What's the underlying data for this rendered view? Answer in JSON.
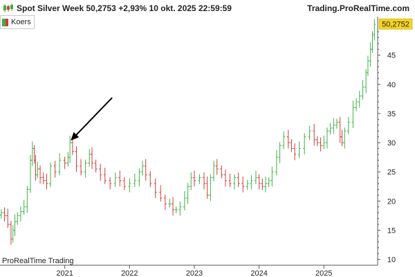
{
  "header": {
    "title": "Spot  Silver Week 50,2753 +2,93% 10 okt. 2025 22:59:59",
    "brand": "Trading.ProRealTime.com",
    "icon": "candlestick-chart-icon"
  },
  "legend": {
    "label": "Koers"
  },
  "watermark": "ProRealTime Trading",
  "price_tag": {
    "text": "50,2752",
    "color": "#f5d320"
  },
  "colors": {
    "up": "#3cb043",
    "down": "#d03a3a",
    "annotation": "#000000",
    "axis": "#555555"
  },
  "chart_data": {
    "type": "bar",
    "style": "ohlc-bars",
    "title": "Spot  Silver Week 50,2753 +2,93% 10 okt. 2025 22:59:59",
    "x_tick_labels": [
      "2021",
      "2022",
      "2023",
      "2024",
      "2025"
    ],
    "x_range": [
      2020.0,
      2025.83
    ],
    "y_tick_labels": [
      "10",
      "15",
      "20",
      "25",
      "30",
      "35",
      "40",
      "45"
    ],
    "ylim": [
      9,
      51.6
    ],
    "grid": false,
    "legend": "top-left",
    "series": [
      {
        "name": "Koers",
        "x": [
          2020.02,
          2020.07,
          2020.12,
          2020.17,
          2020.2,
          2020.23,
          2020.27,
          2020.32,
          2020.37,
          2020.42,
          2020.47,
          2020.5,
          2020.53,
          2020.55,
          2020.58,
          2020.62,
          2020.67,
          2020.72,
          2020.78,
          2020.85,
          2020.92,
          2021.0,
          2021.05,
          2021.08,
          2021.12,
          2021.18,
          2021.25,
          2021.32,
          2021.38,
          2021.42,
          2021.48,
          2021.55,
          2021.62,
          2021.7,
          2021.78,
          2021.85,
          2021.92,
          2022.0,
          2022.08,
          2022.15,
          2022.2,
          2022.25,
          2022.32,
          2022.4,
          2022.48,
          2022.55,
          2022.62,
          2022.67,
          2022.72,
          2022.78,
          2022.85,
          2022.9,
          2022.95,
          2023.0,
          2023.08,
          2023.15,
          2023.2,
          2023.25,
          2023.3,
          2023.35,
          2023.42,
          2023.48,
          2023.55,
          2023.62,
          2023.68,
          2023.75,
          2023.82,
          2023.88,
          2023.95,
          2024.0,
          2024.05,
          2024.1,
          2024.15,
          2024.2,
          2024.27,
          2024.32,
          2024.38,
          2024.45,
          2024.5,
          2024.55,
          2024.62,
          2024.7,
          2024.78,
          2024.85,
          2024.9,
          2024.95,
          2025.0,
          2025.05,
          2025.1,
          2025.15,
          2025.2,
          2025.25,
          2025.28,
          2025.32,
          2025.38,
          2025.45,
          2025.5,
          2025.55,
          2025.6,
          2025.65,
          2025.68,
          2025.72,
          2025.75,
          2025.78
        ],
        "close": [
          18.0,
          17.5,
          16.0,
          13.5,
          15.0,
          16.5,
          17.5,
          18.2,
          19.0,
          22.0,
          27.0,
          29.0,
          27.0,
          24.5,
          25.5,
          24.0,
          23.5,
          23.0,
          26.0,
          25.0,
          27.0,
          26.5,
          27.5,
          30.0,
          28.5,
          26.0,
          25.0,
          26.5,
          28.0,
          26.5,
          25.5,
          24.5,
          23.5,
          23.0,
          24.0,
          23.5,
          22.5,
          23.0,
          23.5,
          25.0,
          26.0,
          24.5,
          23.0,
          21.5,
          20.5,
          19.5,
          19.5,
          18.5,
          18.5,
          19.0,
          20.5,
          22.5,
          24.0,
          23.5,
          24.0,
          23.0,
          21.0,
          24.0,
          26.0,
          25.5,
          24.5,
          23.5,
          23.0,
          24.0,
          23.0,
          22.5,
          23.0,
          23.5,
          24.0,
          23.0,
          22.5,
          23.0,
          23.5,
          25.0,
          27.5,
          29.5,
          31.0,
          30.0,
          29.0,
          28.0,
          29.0,
          31.0,
          32.0,
          30.5,
          30.0,
          29.5,
          30.0,
          32.0,
          32.5,
          33.0,
          33.5,
          31.0,
          30.0,
          32.0,
          33.5,
          36.0,
          37.0,
          38.0,
          39.5,
          42.0,
          44.0,
          46.0,
          48.5,
          50.28
        ]
      }
    ],
    "annotations": [
      {
        "type": "arrow",
        "points_to": {
          "x": 2021.08,
          "y": 30.0
        }
      }
    ]
  }
}
